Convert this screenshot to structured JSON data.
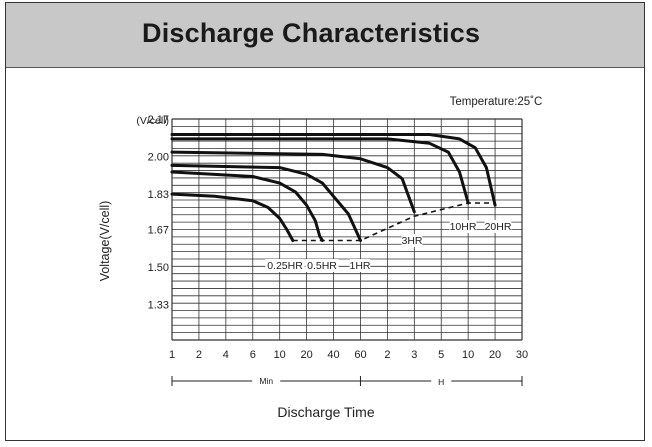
{
  "header": {
    "title": "Discharge Characteristics"
  },
  "chart_data": {
    "type": "line",
    "title": "Discharge Characteristics",
    "annotation": "Temperature:25˚C",
    "xlabel": "Discharge Time",
    "ylabel": "Voltage(V/cell)",
    "y_unit": "(V/cell)",
    "ylim": [
      1.17,
      2.17
    ],
    "y_ticks": [
      "2.17",
      "2.00",
      "1.83",
      "1.67",
      "1.50",
      "1.33"
    ],
    "x_ticks": [
      "1",
      "2",
      "4",
      "6",
      "10",
      "20",
      "40",
      "60",
      "2",
      "3",
      "5",
      "10",
      "20",
      "30"
    ],
    "x_segments": [
      {
        "label": "Min",
        "range": [
          "1",
          "60"
        ]
      },
      {
        "label": "H",
        "range": [
          "60",
          "30"
        ]
      }
    ],
    "grid": true,
    "series": [
      {
        "name": "0.25HR",
        "points": [
          [
            1,
            1.83
          ],
          [
            3,
            1.82
          ],
          [
            6,
            1.8
          ],
          [
            8,
            1.77
          ],
          [
            10,
            1.72
          ],
          [
            12,
            1.67
          ],
          [
            14,
            1.62
          ]
        ]
      },
      {
        "name": "0.5HR",
        "points": [
          [
            1,
            1.93
          ],
          [
            6,
            1.91
          ],
          [
            10,
            1.88
          ],
          [
            15,
            1.84
          ],
          [
            20,
            1.78
          ],
          [
            25,
            1.71
          ],
          [
            28,
            1.64
          ],
          [
            30,
            1.62
          ]
        ]
      },
      {
        "name": "1HR",
        "points": [
          [
            1,
            1.96
          ],
          [
            10,
            1.95
          ],
          [
            20,
            1.92
          ],
          [
            30,
            1.88
          ],
          [
            40,
            1.82
          ],
          [
            50,
            1.74
          ],
          [
            60,
            1.62
          ]
        ]
      },
      {
        "name": "3HR",
        "points": [
          [
            1,
            2.02
          ],
          [
            30,
            2.01
          ],
          [
            60,
            1.99
          ],
          [
            120,
            1.95
          ],
          [
            150,
            1.9
          ],
          [
            180,
            1.75
          ]
        ]
      },
      {
        "name": "10HR",
        "points": [
          [
            1,
            2.08
          ],
          [
            120,
            2.08
          ],
          [
            240,
            2.06
          ],
          [
            360,
            2.02
          ],
          [
            480,
            1.93
          ],
          [
            600,
            1.79
          ]
        ]
      },
      {
        "name": "20HR",
        "points": [
          [
            1,
            2.1
          ],
          [
            240,
            2.1
          ],
          [
            480,
            2.08
          ],
          [
            720,
            2.04
          ],
          [
            960,
            1.95
          ],
          [
            1200,
            1.78
          ]
        ]
      }
    ],
    "cutoff_line": {
      "style": "dashed",
      "points": [
        [
          14,
          1.62
        ],
        [
          60,
          1.62
        ],
        [
          180,
          1.73
        ],
        [
          600,
          1.79
        ],
        [
          1200,
          1.79
        ]
      ]
    }
  }
}
